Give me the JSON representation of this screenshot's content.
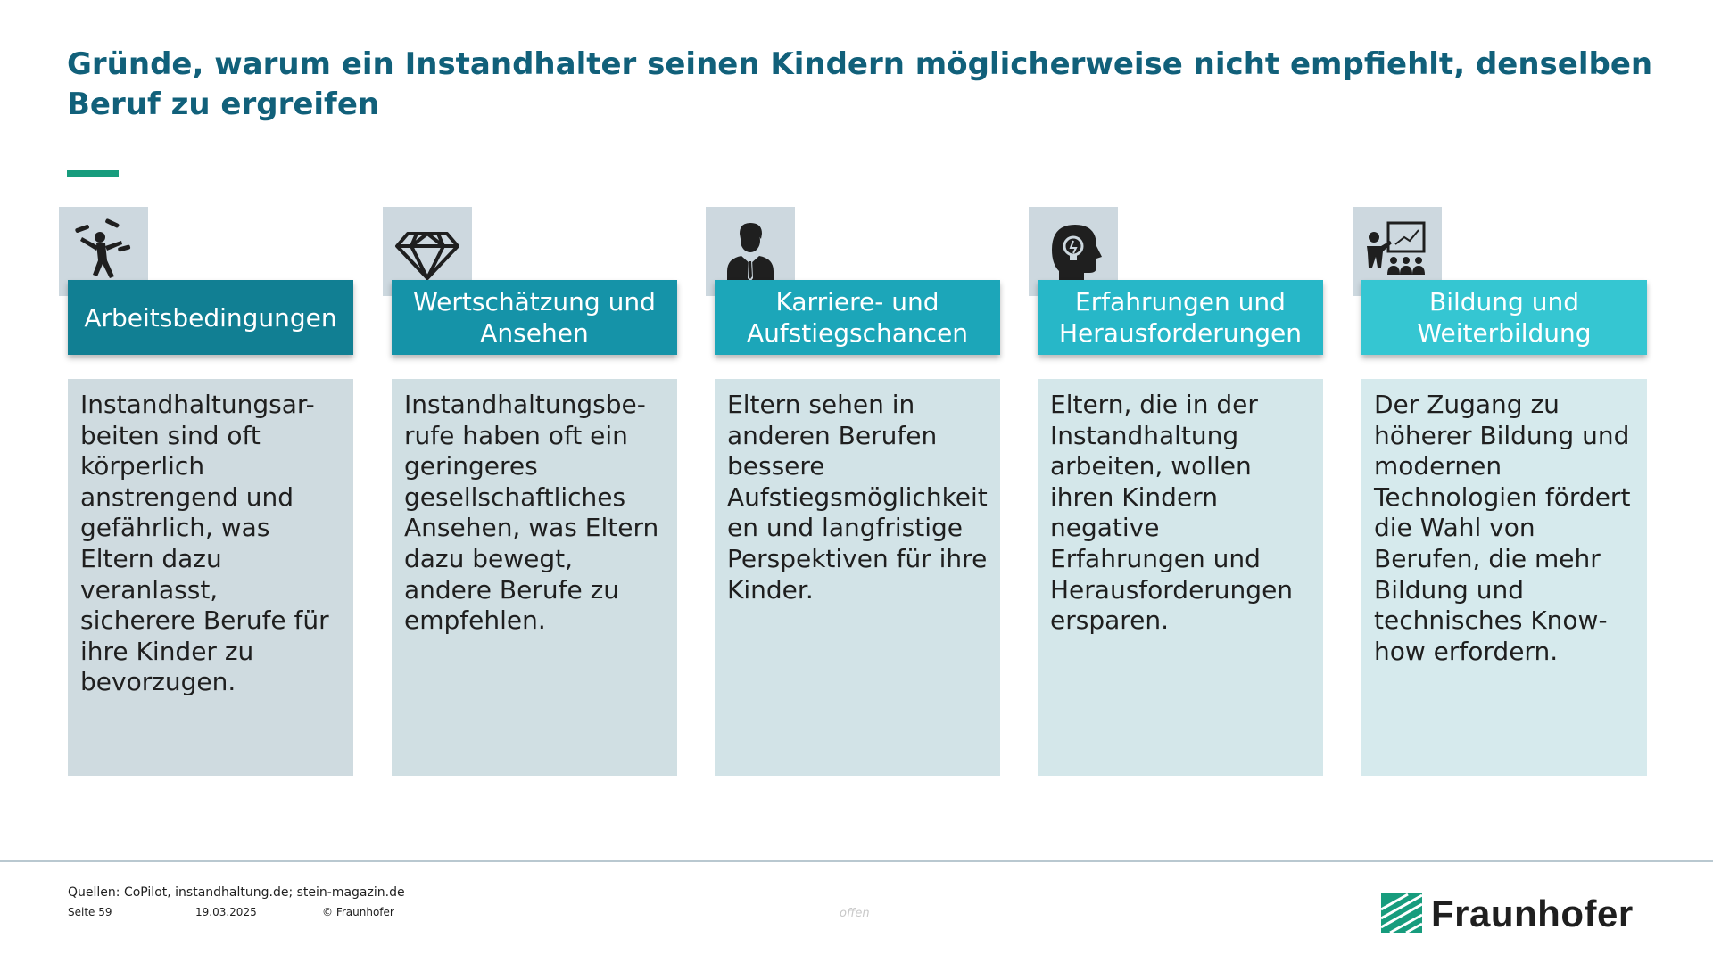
{
  "title": "Gründe, warum ein Instandhalter seinen Kindern möglicherweise nicht empfiehlt, denselben Beruf zu ergreifen",
  "colors": {
    "title": "#11607a",
    "accent_rule": "#179c7d",
    "icon_background": "#cdd8df"
  },
  "columns": [
    {
      "icon": "juggling-person-icon",
      "header": "Arbeitsbedingungen",
      "header_color": "#117f93",
      "body": "Instandhaltungsar-beiten sind oft körperlich anstrengend und gefährlich, was Eltern dazu veranlasst, sicherere Berufe für ihre Kinder zu bevorzugen.",
      "body_color": "#cfdbe0"
    },
    {
      "icon": "diamond-icon",
      "header": "Wertschätzung und Ansehen",
      "header_color": "#1593a8",
      "body": "Instandhaltungsbe-rufe haben oft ein geringeres gesellschaftliches Ansehen, was Eltern dazu bewegt, andere Berufe zu empfehlen.",
      "body_color": "#d0dfe3"
    },
    {
      "icon": "businessman-icon",
      "header": "Karriere- und Aufstiegschancen",
      "header_color": "#1ca6b9",
      "body": "Eltern sehen in anderen Berufen bessere Aufstiegsmöglichkeit en und langfristige Perspektiven für ihre Kinder.",
      "body_color": "#d2e3e7"
    },
    {
      "icon": "head-lightbulb-icon",
      "header": "Erfahrungen und Herausforderungen",
      "header_color": "#27b7c8",
      "body": "Eltern, die in der Instandhaltung arbeiten, wollen ihren Kindern negative Erfahrungen und Herausforderungen ersparen.",
      "body_color": "#d4e7ea"
    },
    {
      "icon": "teacher-presentation-icon",
      "header": "Bildung und Weiterbildung",
      "header_color": "#35c6d2",
      "body": "Der Zugang zu höherer Bildung und modernen Technologien fördert die Wahl von Berufen, die mehr Bildung und technisches Know-how erfordern.",
      "body_color": "#d6eaed"
    }
  ],
  "footer": {
    "sources": "Quellen: CoPilot, instandhaltung.de; stein-magazin.de",
    "page": "Seite 59",
    "date": "19.03.2025",
    "copyright": "© Fraunhofer",
    "classification": "offen",
    "logo_text": "Fraunhofer",
    "logo_color": "#179c7d"
  }
}
